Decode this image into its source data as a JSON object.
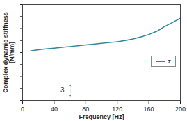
{
  "chart_data": {
    "type": "line",
    "x_label": "Frequency [Hz]",
    "y_label": "Complex dynamic stiffness\n[N/mm]",
    "xlim": [
      0,
      200
    ],
    "xticks": [
      0,
      40,
      80,
      120,
      160,
      200
    ],
    "ylim": [
      0,
      24
    ],
    "yticks": [
      0,
      3,
      6,
      9,
      12,
      15,
      18,
      21,
      24
    ],
    "tick_labels": "x",
    "grid": false,
    "legend": "right",
    "x": [
      10,
      20,
      30,
      40,
      50,
      60,
      70,
      80,
      90,
      100,
      110,
      120,
      130,
      140,
      150,
      160,
      170,
      180,
      190,
      200
    ],
    "series": [
      {
        "name": "z",
        "color": "#31859c",
        "values": [
          12.4,
          12.7,
          12.9,
          13.1,
          13.3,
          13.5,
          13.7,
          13.9,
          14.1,
          14.3,
          14.5,
          14.7,
          15.0,
          15.4,
          15.9,
          16.5,
          17.3,
          18.5,
          19.5,
          20.6
        ]
      }
    ],
    "annotations": [
      {
        "text": "3",
        "x": 60,
        "y_from": 1,
        "y_to": 4
      }
    ]
  }
}
